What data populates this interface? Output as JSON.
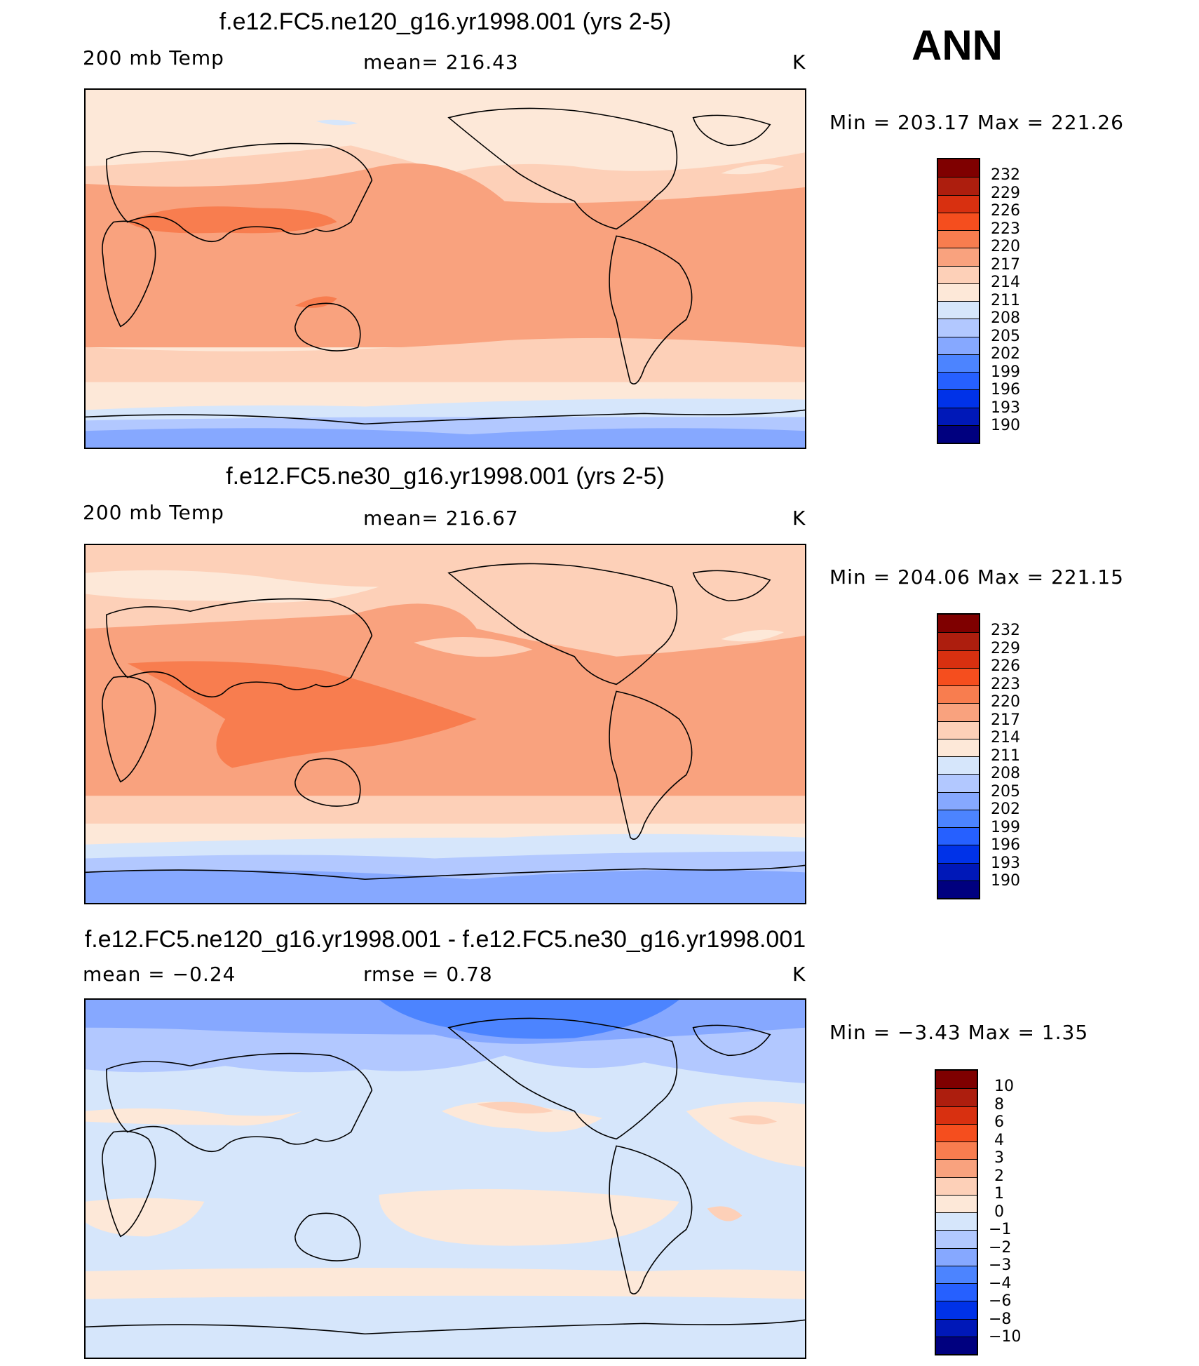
{
  "season": "ANN",
  "colors": {
    "temp_scale": [
      "#00007f",
      "#0018b8",
      "#0032e8",
      "#2660ff",
      "#4c84ff",
      "#86a8ff",
      "#b2c8ff",
      "#d6e6fb",
      "#fde8d8",
      "#fdd0b8",
      "#f9a27e",
      "#f87d4f",
      "#f54e1e",
      "#d83010",
      "#ad1e0e",
      "#7f0000"
    ],
    "diff_scale": [
      "#00007f",
      "#0018b8",
      "#0032e8",
      "#2660ff",
      "#4c84ff",
      "#86a8ff",
      "#b2c8ff",
      "#d6e6fb",
      "#fde8d8",
      "#fdd0b8",
      "#f9a27e",
      "#f87d4f",
      "#f54e1e",
      "#d83010",
      "#ad1e0e",
      "#7f0000"
    ]
  },
  "panels": [
    {
      "title": "f.e12.FC5.ne120_g16.yr1998.001 (yrs 2-5)",
      "variable": "200 mb Temp",
      "stat": "mean=  216.43",
      "units": "K",
      "minmax": "Min  =  203.17  Max  =  221.26",
      "levels": [
        "232",
        "229",
        "226",
        "223",
        "220",
        "217",
        "214",
        "211",
        "208",
        "205",
        "202",
        "199",
        "196",
        "193",
        "190"
      ]
    },
    {
      "title": "f.e12.FC5.ne30_g16.yr1998.001 (yrs 2-5)",
      "variable": "200 mb Temp",
      "stat": "mean=  216.67",
      "units": "K",
      "minmax": "Min  =  204.06  Max  =  221.15",
      "levels": [
        "232",
        "229",
        "226",
        "223",
        "220",
        "217",
        "214",
        "211",
        "208",
        "205",
        "202",
        "199",
        "196",
        "193",
        "190"
      ]
    },
    {
      "title": "f.e12.FC5.ne120_g16.yr1998.001 - f.e12.FC5.ne30_g16.yr1998.001",
      "variable": "mean  =    −0.24",
      "stat": "rmse  =      0.78",
      "units": "K",
      "minmax": "Min  =     −3.43  Max  =      1.35",
      "levels": [
        "10",
        "8",
        "6",
        "4",
        "3",
        "2",
        "1",
        "0",
        "−1",
        "−2",
        "−3",
        "−4",
        "−6",
        "−8",
        "−10"
      ]
    }
  ]
}
